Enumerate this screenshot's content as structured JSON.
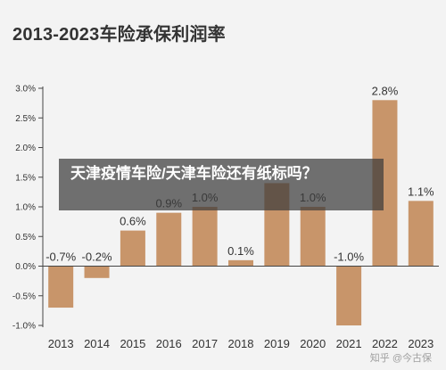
{
  "page": {
    "overlay_text": "天津疫情车险/天津车险还有纸标吗？",
    "watermark": "知乎 @今古保"
  },
  "chart_data": {
    "type": "bar",
    "title": "2013-2023车险承保利润率",
    "categories": [
      "2013",
      "2014",
      "2015",
      "2016",
      "2017",
      "2018",
      "2019",
      "2020",
      "2021",
      "2022",
      "2023"
    ],
    "values": [
      -0.7,
      -0.2,
      0.6,
      0.9,
      1.0,
      0.1,
      1.4,
      1.0,
      -1.0,
      2.8,
      1.1
    ],
    "data_labels": [
      "-0.7%",
      "-0.2%",
      "0.6%",
      "0.9%",
      "1.0%",
      "0.1%",
      "",
      "1.0%",
      "-1.0%",
      "2.8%",
      "1.1%"
    ],
    "y_ticks": [
      3.0,
      2.5,
      2.0,
      1.5,
      1.0,
      0.5,
      0.0,
      -0.5,
      -1.0
    ],
    "y_tick_labels": [
      "3.0%",
      "2.5%",
      "2.0%",
      "1.5%",
      "1.0%",
      "0.5%",
      "0.0%",
      "-0.5%",
      "-1.0%"
    ],
    "ylim": [
      -1.0,
      3.0
    ],
    "grid": false,
    "bar_color": "#c8956a"
  }
}
